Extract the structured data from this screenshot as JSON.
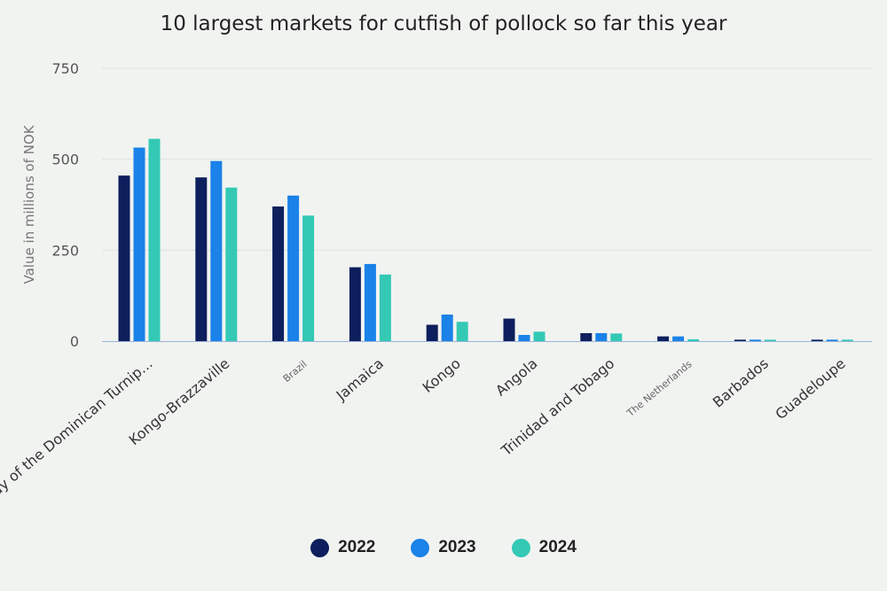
{
  "colors": {
    "2022": "#0d1f5c",
    "2023": "#1a82e8",
    "2024": "#33c9b5",
    "grid": "#dde2df",
    "axis": "#9bb4d8"
  },
  "chart_data": {
    "type": "bar",
    "title": "10 largest markets for cutfish of pollock so far this year",
    "ylabel": "Value in millions of NOK",
    "xlabel": "",
    "ylim": [
      0,
      750
    ],
    "yticks": [
      0,
      250,
      500,
      750
    ],
    "grid": true,
    "legend_position": "bottom",
    "categories": [
      "Day of the Dominican Turnip...",
      "Kongo-Brazzaville",
      "Brazil",
      "Jamaica",
      "Kongo",
      "Angola",
      "Trinidad and Tobago",
      "The Netherlands",
      "Barbados",
      "Guadeloupe"
    ],
    "series": [
      {
        "name": "2022",
        "values": [
          455,
          450,
          370,
          203,
          45,
          62,
          22,
          13,
          4,
          4
        ]
      },
      {
        "name": "2023",
        "values": [
          532,
          495,
          400,
          212,
          73,
          17,
          22,
          13,
          4,
          4
        ]
      },
      {
        "name": "2024",
        "values": [
          556,
          422,
          345,
          183,
          53,
          26,
          21,
          5,
          4,
          4
        ]
      }
    ]
  }
}
